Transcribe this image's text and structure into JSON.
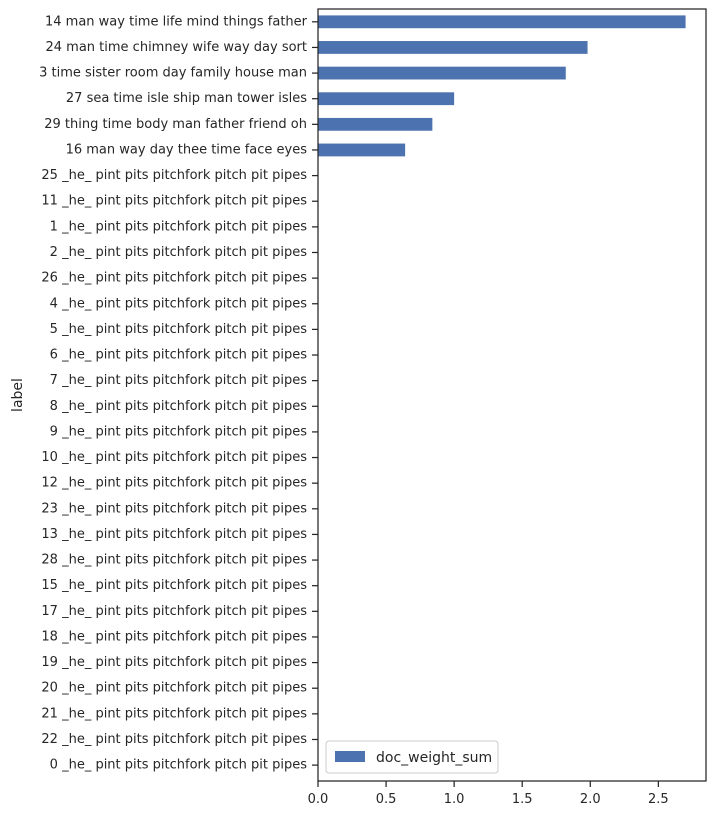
{
  "chart_data": {
    "type": "bar",
    "orientation": "horizontal",
    "title": "",
    "xlabel": "",
    "ylabel": "label",
    "xlim": [
      0,
      2.85
    ],
    "x_ticks": [
      "0.0",
      "0.5",
      "1.0",
      "1.5",
      "2.0",
      "2.5"
    ],
    "grid": false,
    "legend_position": "lower-left",
    "bar_color": "#4c72b0",
    "categories": [
      "14 man way time life mind things father",
      "24 man time chimney wife way day sort",
      "3 time sister room day family house man",
      "27 sea time isle ship man tower isles",
      "29 thing time body man father friend oh",
      "16 man way day thee time face eyes",
      "25 _he_ pint pits pitchfork pitch pit pipes",
      "11 _he_ pint pits pitchfork pitch pit pipes",
      "1 _he_ pint pits pitchfork pitch pit pipes",
      "2 _he_ pint pits pitchfork pitch pit pipes",
      "26 _he_ pint pits pitchfork pitch pit pipes",
      "4 _he_ pint pits pitchfork pitch pit pipes",
      "5 _he_ pint pits pitchfork pitch pit pipes",
      "6 _he_ pint pits pitchfork pitch pit pipes",
      "7 _he_ pint pits pitchfork pitch pit pipes",
      "8 _he_ pint pits pitchfork pitch pit pipes",
      "9 _he_ pint pits pitchfork pitch pit pipes",
      "10 _he_ pint pits pitchfork pitch pit pipes",
      "12 _he_ pint pits pitchfork pitch pit pipes",
      "23 _he_ pint pits pitchfork pitch pit pipes",
      "13 _he_ pint pits pitchfork pitch pit pipes",
      "28 _he_ pint pits pitchfork pitch pit pipes",
      "15 _he_ pint pits pitchfork pitch pit pipes",
      "17 _he_ pint pits pitchfork pitch pit pipes",
      "18 _he_ pint pits pitchfork pitch pit pipes",
      "19 _he_ pint pits pitchfork pitch pit pipes",
      "20 _he_ pint pits pitchfork pitch pit pipes",
      "21 _he_ pint pits pitchfork pitch pit pipes",
      "22 _he_ pint pits pitchfork pitch pit pipes",
      "0 _he_ pint pits pitchfork pitch pit pipes"
    ],
    "series": [
      {
        "name": "doc_weight_sum",
        "values": [
          2.7,
          1.98,
          1.82,
          1.0,
          0.84,
          0.64,
          0,
          0,
          0,
          0,
          0,
          0,
          0,
          0,
          0,
          0,
          0,
          0,
          0,
          0,
          0,
          0,
          0,
          0,
          0,
          0,
          0,
          0,
          0,
          0
        ]
      }
    ]
  }
}
